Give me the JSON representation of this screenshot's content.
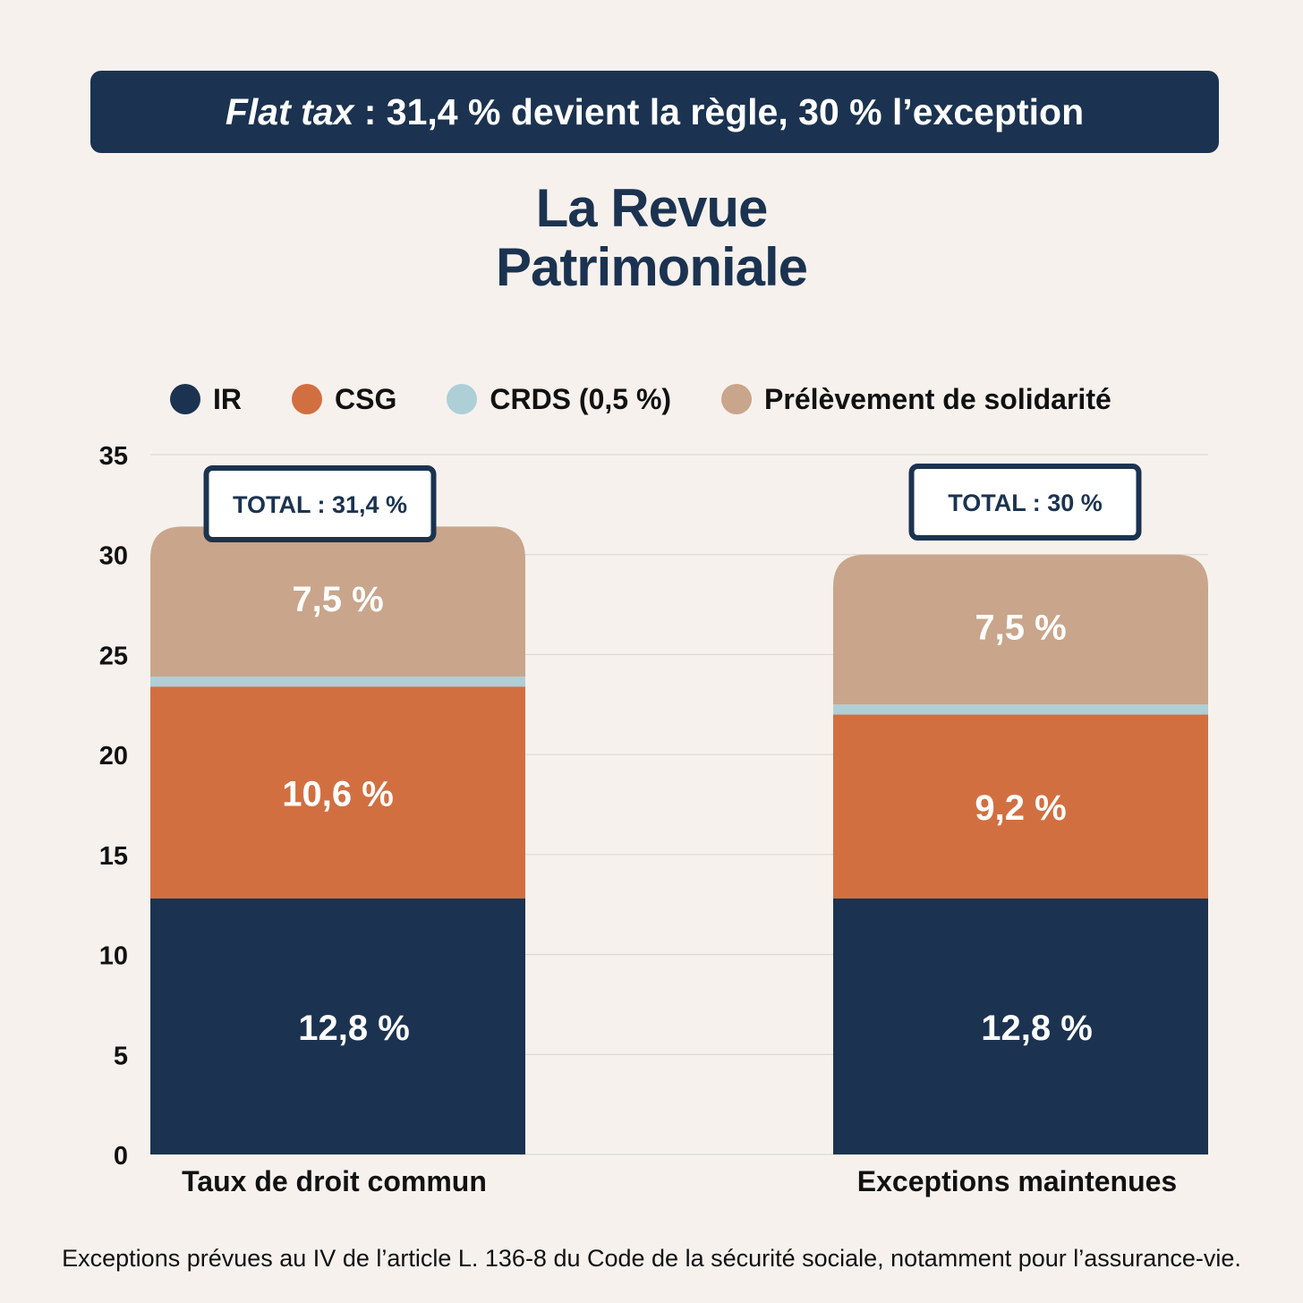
{
  "header": {
    "title_italic": "Flat tax",
    "title_rest": " : 31,4 % devient la règle, 30 % l’exception"
  },
  "brand": {
    "line1": "La Revue",
    "line2": "Patrimoniale"
  },
  "colors": {
    "background": "#f6f1ed",
    "navy": "#1b3350",
    "IR": "#1b3350",
    "CSG": "#d26f41",
    "CRDS": "#aecfd6",
    "solidarite": "#c9a58b",
    "grid": "#d6d2ce"
  },
  "legend": [
    {
      "label": "IR",
      "color": "#1b3350"
    },
    {
      "label": "CSG",
      "color": "#d26f41"
    },
    {
      "label": "CRDS (0,5 %)",
      "color": "#aecfd6"
    },
    {
      "label": "Prélèvement de solidarité",
      "color": "#c9a58b"
    }
  ],
  "chart_data": {
    "type": "bar",
    "stacked": true,
    "categories": [
      "Taux de droit commun",
      "Exceptions maintenues"
    ],
    "series": [
      {
        "name": "IR",
        "values": [
          12.8,
          12.8
        ],
        "labels": [
          "12,8 %",
          "12,8 %"
        ],
        "color": "#1b3350"
      },
      {
        "name": "CSG",
        "values": [
          10.6,
          9.2
        ],
        "labels": [
          "10,6 %",
          "9,2 %"
        ],
        "color": "#d26f41"
      },
      {
        "name": "CRDS (0,5 %)",
        "values": [
          0.5,
          0.5
        ],
        "labels": [
          "",
          ""
        ],
        "color": "#aecfd6"
      },
      {
        "name": "Prélèvement de solidarité",
        "values": [
          7.5,
          7.5
        ],
        "labels": [
          "7,5 %",
          "7,5 %"
        ],
        "color": "#c9a58b"
      }
    ],
    "totals": [
      "TOTAL : 31,4 %",
      "TOTAL : 30 %"
    ],
    "yticks": [
      0,
      5,
      10,
      15,
      20,
      25,
      30,
      35
    ],
    "ylim": [
      0,
      35
    ],
    "xlabel": "",
    "ylabel": "",
    "grid": true,
    "legend_position": "top"
  },
  "footnote": "Exceptions prévues au IV de l’article L. 136-8 du Code de la sécurité sociale, notamment pour l’assurance-vie."
}
